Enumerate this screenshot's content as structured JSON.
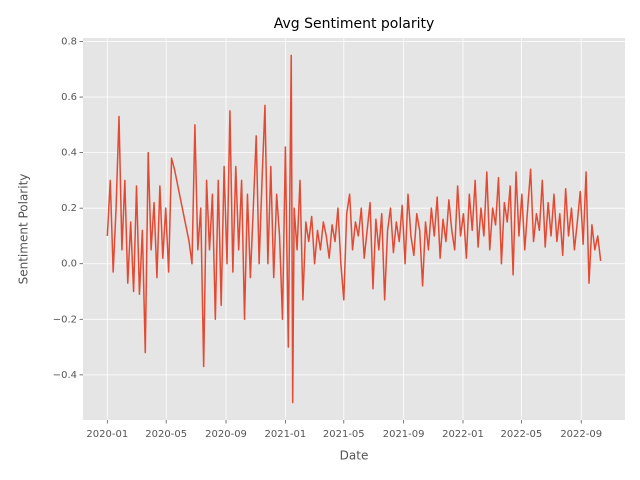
{
  "chart_data": {
    "type": "line",
    "title": "Avg Sentiment polarity",
    "xlabel": "Date",
    "ylabel": "Sentiment Polarity",
    "color": "#E24A33",
    "grid": true,
    "x": [
      18262,
      18268,
      18274,
      18280,
      18286,
      18292,
      18298,
      18304,
      18310,
      18316,
      18322,
      18328,
      18334,
      18340,
      18346,
      18352,
      18358,
      18364,
      18370,
      18376,
      18382,
      18388,
      18394,
      18400,
      18430,
      18436,
      18442,
      18448,
      18454,
      18460,
      18466,
      18472,
      18478,
      18484,
      18490,
      18496,
      18502,
      18508,
      18514,
      18520,
      18526,
      18532,
      18538,
      18544,
      18550,
      18556,
      18562,
      18568,
      18574,
      18580,
      18586,
      18592,
      18598,
      18604,
      18610,
      18616,
      18622,
      18628,
      18634,
      18640,
      18643,
      18646,
      18652,
      18658,
      18664,
      18670,
      18676,
      18682,
      18688,
      18694,
      18700,
      18706,
      18712,
      18718,
      18724,
      18730,
      18736,
      18742,
      18748,
      18754,
      18760,
      18766,
      18772,
      18778,
      18784,
      18790,
      18796,
      18802,
      18808,
      18814,
      18820,
      18826,
      18832,
      18838,
      18844,
      18850,
      18856,
      18862,
      18868,
      18874,
      18880,
      18886,
      18892,
      18898,
      18904,
      18910,
      18916,
      18922,
      18928,
      18934,
      18940,
      18946,
      18952,
      18958,
      18964,
      18970,
      18976,
      18982,
      18988,
      18994,
      19000,
      19006,
      19012,
      19018,
      19024,
      19030,
      19036,
      19042,
      19048,
      19054,
      19060,
      19066,
      19072,
      19078,
      19084,
      19090,
      19096,
      19102,
      19108,
      19114,
      19120,
      19126,
      19132,
      19138,
      19144,
      19150,
      19156,
      19162,
      19168,
      19174,
      19180,
      19186,
      19192,
      19198,
      19204,
      19210,
      19216,
      19222,
      19228,
      19234,
      19240,
      19246,
      19252,
      19258,
      19264,
      19270,
      19276
    ],
    "values": [
      0.1,
      0.3,
      -0.03,
      0.2,
      0.53,
      0.05,
      0.3,
      -0.07,
      0.15,
      -0.1,
      0.28,
      -0.11,
      0.12,
      -0.32,
      0.4,
      0.05,
      0.22,
      -0.05,
      0.28,
      0.02,
      0.2,
      -0.03,
      0.38,
      0.34,
      0.08,
      0.0,
      0.5,
      0.05,
      0.2,
      -0.37,
      0.3,
      0.05,
      0.25,
      -0.2,
      0.3,
      -0.15,
      0.35,
      0.0,
      0.55,
      -0.03,
      0.35,
      0.05,
      0.3,
      -0.2,
      0.25,
      -0.05,
      0.2,
      0.46,
      0.0,
      0.3,
      0.57,
      0.0,
      0.35,
      -0.05,
      0.25,
      0.1,
      -0.2,
      0.42,
      -0.3,
      0.75,
      -0.5,
      0.2,
      0.05,
      0.3,
      -0.13,
      0.15,
      0.08,
      0.17,
      0.0,
      0.12,
      0.05,
      0.15,
      0.1,
      0.02,
      0.14,
      0.08,
      0.2,
      0.0,
      -0.13,
      0.18,
      0.25,
      0.05,
      0.15,
      0.1,
      0.2,
      0.02,
      0.12,
      0.22,
      -0.09,
      0.16,
      0.05,
      0.18,
      -0.13,
      0.12,
      0.2,
      0.04,
      0.15,
      0.08,
      0.21,
      0.0,
      0.25,
      0.1,
      0.03,
      0.18,
      0.12,
      -0.08,
      0.15,
      0.05,
      0.2,
      0.1,
      0.24,
      0.02,
      0.16,
      0.08,
      0.23,
      0.12,
      0.05,
      0.28,
      0.1,
      0.18,
      0.02,
      0.25,
      0.12,
      0.3,
      0.06,
      0.2,
      0.1,
      0.33,
      0.05,
      0.2,
      0.14,
      0.31,
      0.0,
      0.22,
      0.15,
      0.28,
      -0.04,
      0.33,
      0.1,
      0.25,
      0.05,
      0.2,
      0.34,
      0.08,
      0.18,
      0.12,
      0.3,
      0.06,
      0.22,
      0.1,
      0.25,
      0.08,
      0.18,
      0.03,
      0.27,
      0.1,
      0.2,
      0.05,
      0.15,
      0.26,
      0.07,
      0.33,
      -0.07,
      0.14,
      0.05,
      0.1,
      0.01
    ],
    "xlim": [
      18212,
      19326
    ],
    "xticks": [
      {
        "value": 18262,
        "label": "2020-01"
      },
      {
        "value": 18383,
        "label": "2020-05"
      },
      {
        "value": 18506,
        "label": "2020-09"
      },
      {
        "value": 18628,
        "label": "2021-01"
      },
      {
        "value": 18748,
        "label": "2021-05"
      },
      {
        "value": 18871,
        "label": "2021-09"
      },
      {
        "value": 18993,
        "label": "2022-01"
      },
      {
        "value": 19113,
        "label": "2022-05"
      },
      {
        "value": 19236,
        "label": "2022-09"
      }
    ],
    "ylim": [
      -0.5625,
      0.8125
    ],
    "yticks": [
      {
        "value": -0.4,
        "label": "−0.4"
      },
      {
        "value": -0.2,
        "label": "−0.2"
      },
      {
        "value": 0,
        "label": "0.0"
      },
      {
        "value": 0.2,
        "label": "0.2"
      },
      {
        "value": 0.4,
        "label": "0.4"
      },
      {
        "value": 0.6,
        "label": "0.6"
      },
      {
        "value": 0.8,
        "label": "0.8"
      }
    ]
  }
}
